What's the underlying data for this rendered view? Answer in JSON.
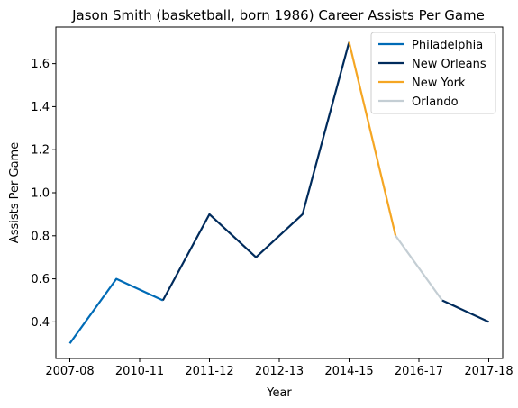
{
  "chart_data": {
    "type": "line",
    "title": "Jason Smith (basketball, born 1986) Career Assists Per Game",
    "xlabel": "Year",
    "ylabel": "Assists Per Game",
    "x_tick_labels": [
      "2007-08",
      "2010-11",
      "2011-12",
      "2012-13",
      "2014-15",
      "2016-17",
      "2017-18"
    ],
    "y_ticks": [
      0.4,
      0.6,
      0.8,
      1.0,
      1.2,
      1.4,
      1.6
    ],
    "y_tick_labels": [
      "0.4",
      "0.6",
      "0.8",
      "1.0",
      "1.2",
      "1.4",
      "1.6"
    ],
    "ylim": [
      0.23,
      1.77
    ],
    "xlim": [
      -0.3,
      9.3
    ],
    "grid": false,
    "legend_position": "top-right",
    "points": [
      {
        "i": 0,
        "value": 0.3
      },
      {
        "i": 1,
        "value": 0.6
      },
      {
        "i": 2,
        "value": 0.5
      },
      {
        "i": 3,
        "value": 0.9
      },
      {
        "i": 4,
        "value": 0.7
      },
      {
        "i": 5,
        "value": 0.9
      },
      {
        "i": 6,
        "value": 1.7
      },
      {
        "i": 7,
        "value": 0.8
      },
      {
        "i": 8,
        "value": 0.5
      },
      {
        "i": 9,
        "value": 0.4
      }
    ],
    "series": [
      {
        "name": "Philadelphia",
        "color": "#006bb6",
        "segments": [
          [
            0,
            2
          ]
        ]
      },
      {
        "name": "New Orleans",
        "color": "#002b5c",
        "segments": [
          [
            2,
            6
          ],
          [
            8,
            9
          ]
        ]
      },
      {
        "name": "New York",
        "color": "#f5a623",
        "segments": [
          [
            6,
            7
          ]
        ]
      },
      {
        "name": "Orlando",
        "color": "#c4ced4",
        "segments": [
          [
            7,
            8
          ]
        ]
      }
    ]
  }
}
